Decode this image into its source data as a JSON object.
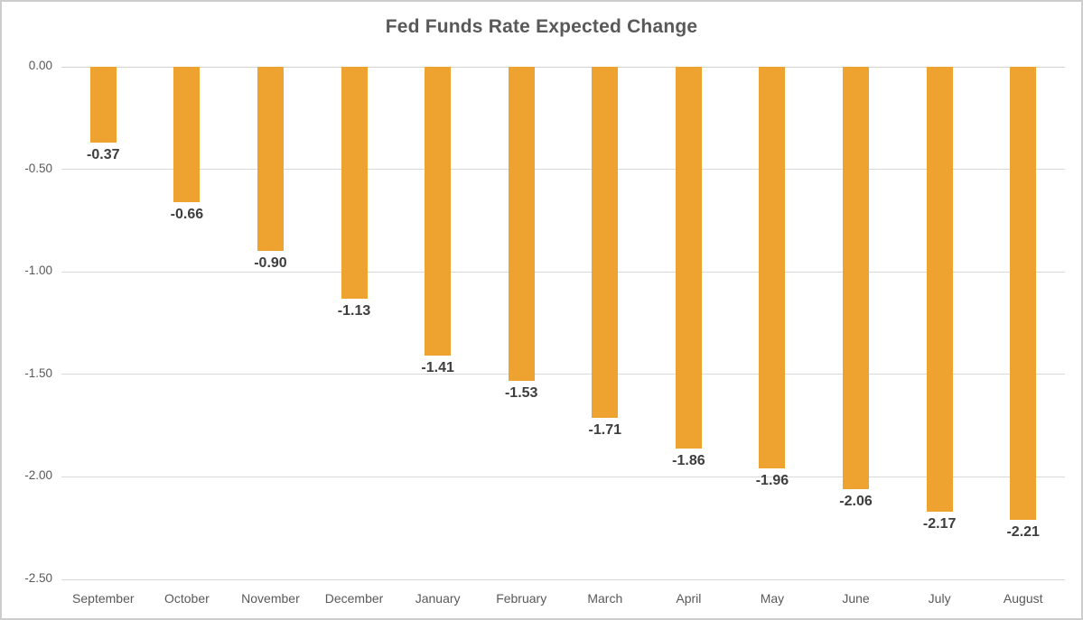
{
  "title": "Fed Funds Rate Expected Change",
  "colors": {
    "bar": "#EEA22F",
    "gridline": "#D9D9D9",
    "axis_line": "#D6D6D6",
    "frame_border": "#CDCDCD",
    "title_text": "#595959",
    "tick_text": "#595959",
    "value_label_text": "#3D3D3D",
    "background": "#FFFFFF"
  },
  "chart_data": {
    "type": "bar",
    "title": "Fed Funds Rate Expected Change",
    "categories": [
      "September",
      "October",
      "November",
      "December",
      "January",
      "February",
      "March",
      "April",
      "May",
      "June",
      "July",
      "August"
    ],
    "values": [
      -0.37,
      -0.66,
      -0.9,
      -1.13,
      -1.41,
      -1.53,
      -1.71,
      -1.86,
      -1.96,
      -2.06,
      -2.17,
      -2.21
    ],
    "value_labels": [
      "-0.37",
      "-0.66",
      "-0.90",
      "-1.13",
      "-1.41",
      "-1.53",
      "-1.71",
      "-1.86",
      "-1.96",
      "-2.06",
      "-2.17",
      "-2.21"
    ],
    "xlabel": "",
    "ylabel": "",
    "ylim": [
      -2.5,
      0.0
    ],
    "y_ticks": [
      "0.00",
      "-0.50",
      "-1.00",
      "-1.50",
      "-2.00",
      "-2.50"
    ],
    "y_tick_values": [
      0,
      -0.5,
      -1.0,
      -1.5,
      -2.0,
      -2.5
    ],
    "grid": true,
    "legend": "none",
    "bar_color": "#EEA22F",
    "data_label_position": "outside-end-below"
  }
}
